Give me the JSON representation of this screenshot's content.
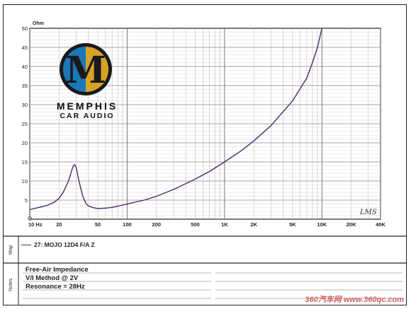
{
  "chart_data": {
    "type": "line",
    "title": "",
    "ylabel": "Ohm",
    "xlabel": "",
    "x_scale": "log",
    "xlim": [
      10,
      40000
    ],
    "ylim": [
      0,
      50
    ],
    "grid": true,
    "y_ticks": [
      5,
      10,
      15,
      20,
      25,
      30,
      35,
      40,
      45,
      50
    ],
    "x_ticks": [
      {
        "value": 10,
        "label": "10 Hz"
      },
      {
        "value": 20,
        "label": "20"
      },
      {
        "value": 50,
        "label": "50"
      },
      {
        "value": 100,
        "label": "100"
      },
      {
        "value": 200,
        "label": "200"
      },
      {
        "value": 500,
        "label": "500"
      },
      {
        "value": 1000,
        "label": "1K"
      },
      {
        "value": 2000,
        "label": "2K"
      },
      {
        "value": 5000,
        "label": "5K"
      },
      {
        "value": 10000,
        "label": "10K"
      },
      {
        "value": 20000,
        "label": "20K"
      },
      {
        "value": 40000,
        "label": "40K"
      }
    ],
    "series": [
      {
        "name": "27: MOJO 12D4 F/A  Z",
        "color": "#4b2a6a",
        "x": [
          10,
          12,
          15,
          18,
          20,
          22,
          25,
          27,
          28,
          29,
          30,
          32,
          35,
          38,
          40,
          45,
          50,
          60,
          70,
          80,
          90,
          100,
          150,
          200,
          300,
          500,
          700,
          1000,
          1500,
          2000,
          3000,
          5000,
          7000,
          8000,
          9000,
          10000
        ],
        "y": [
          2.5,
          3.0,
          3.6,
          4.5,
          5.5,
          7.0,
          10.0,
          12.8,
          14.0,
          14.3,
          13.5,
          10.0,
          6.0,
          4.0,
          3.5,
          3.0,
          2.8,
          2.9,
          3.1,
          3.4,
          3.7,
          4.0,
          5.0,
          6.0,
          7.8,
          10.5,
          12.5,
          15.0,
          18.0,
          20.5,
          24.5,
          31.0,
          37.0,
          41.0,
          45.0,
          50.0
        ]
      }
    ]
  },
  "logo": {
    "brand_line1": "MEMPHIS",
    "brand_line2": "CAR AUDIO",
    "mark": "M",
    "colors": {
      "gold": "#e3a41f",
      "blue": "#1a78b8",
      "dark": "#1a1a1a"
    }
  },
  "signature": "LMS",
  "map": {
    "side_label": "Map",
    "legend_label": "27: MOJO 12D4 F/A  Z"
  },
  "notes": {
    "side_label": "Notes",
    "lines": [
      "Free-Air Impedance",
      "V/I Method @ 2V",
      "Resonance = 28Hz"
    ]
  },
  "watermark": "360汽车网 www.360qc.com"
}
